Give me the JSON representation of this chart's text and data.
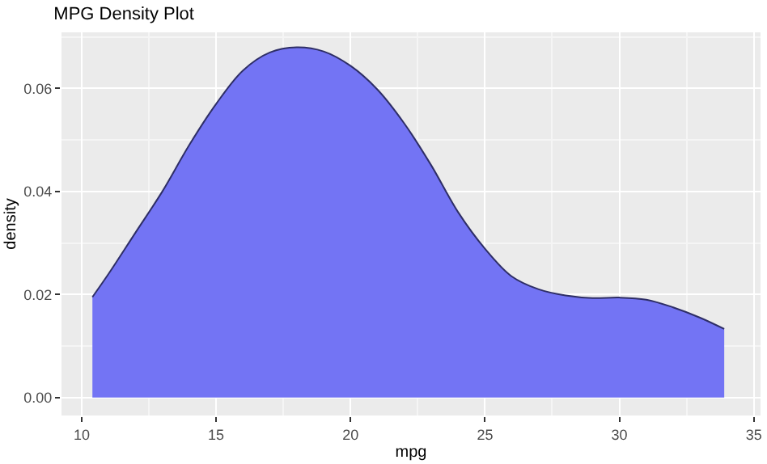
{
  "chart_data": {
    "type": "area",
    "title": "MPG Density Plot",
    "xlabel": "mpg",
    "ylabel": "density",
    "x": [
      10.4,
      11,
      12,
      13,
      14,
      15,
      16,
      17,
      18,
      19,
      20,
      21,
      22,
      23,
      24,
      25,
      26,
      27,
      28,
      29,
      30,
      31,
      32,
      33,
      33.9
    ],
    "series": [
      {
        "color": "#7374f4",
        "values": [
          0.0195,
          0.024,
          0.032,
          0.04,
          0.049,
          0.057,
          0.0635,
          0.067,
          0.068,
          0.0672,
          0.0644,
          0.0598,
          0.0532,
          0.0451,
          0.036,
          0.0289,
          0.0235,
          0.021,
          0.0198,
          0.0193,
          0.0194,
          0.019,
          0.0175,
          0.0155,
          0.0133
        ]
      }
    ],
    "xlim": [
      9.25,
      35.25
    ],
    "ylim": [
      -0.0035,
      0.0709
    ],
    "xticks": [
      10,
      15,
      20,
      25,
      30,
      35
    ],
    "yticks": [
      {
        "value": 0,
        "label": "0.00"
      },
      {
        "value": 0.02,
        "label": "0.02"
      },
      {
        "value": 0.04,
        "label": "0.04"
      },
      {
        "value": 0.06,
        "label": "0.06"
      }
    ],
    "grid": true
  }
}
